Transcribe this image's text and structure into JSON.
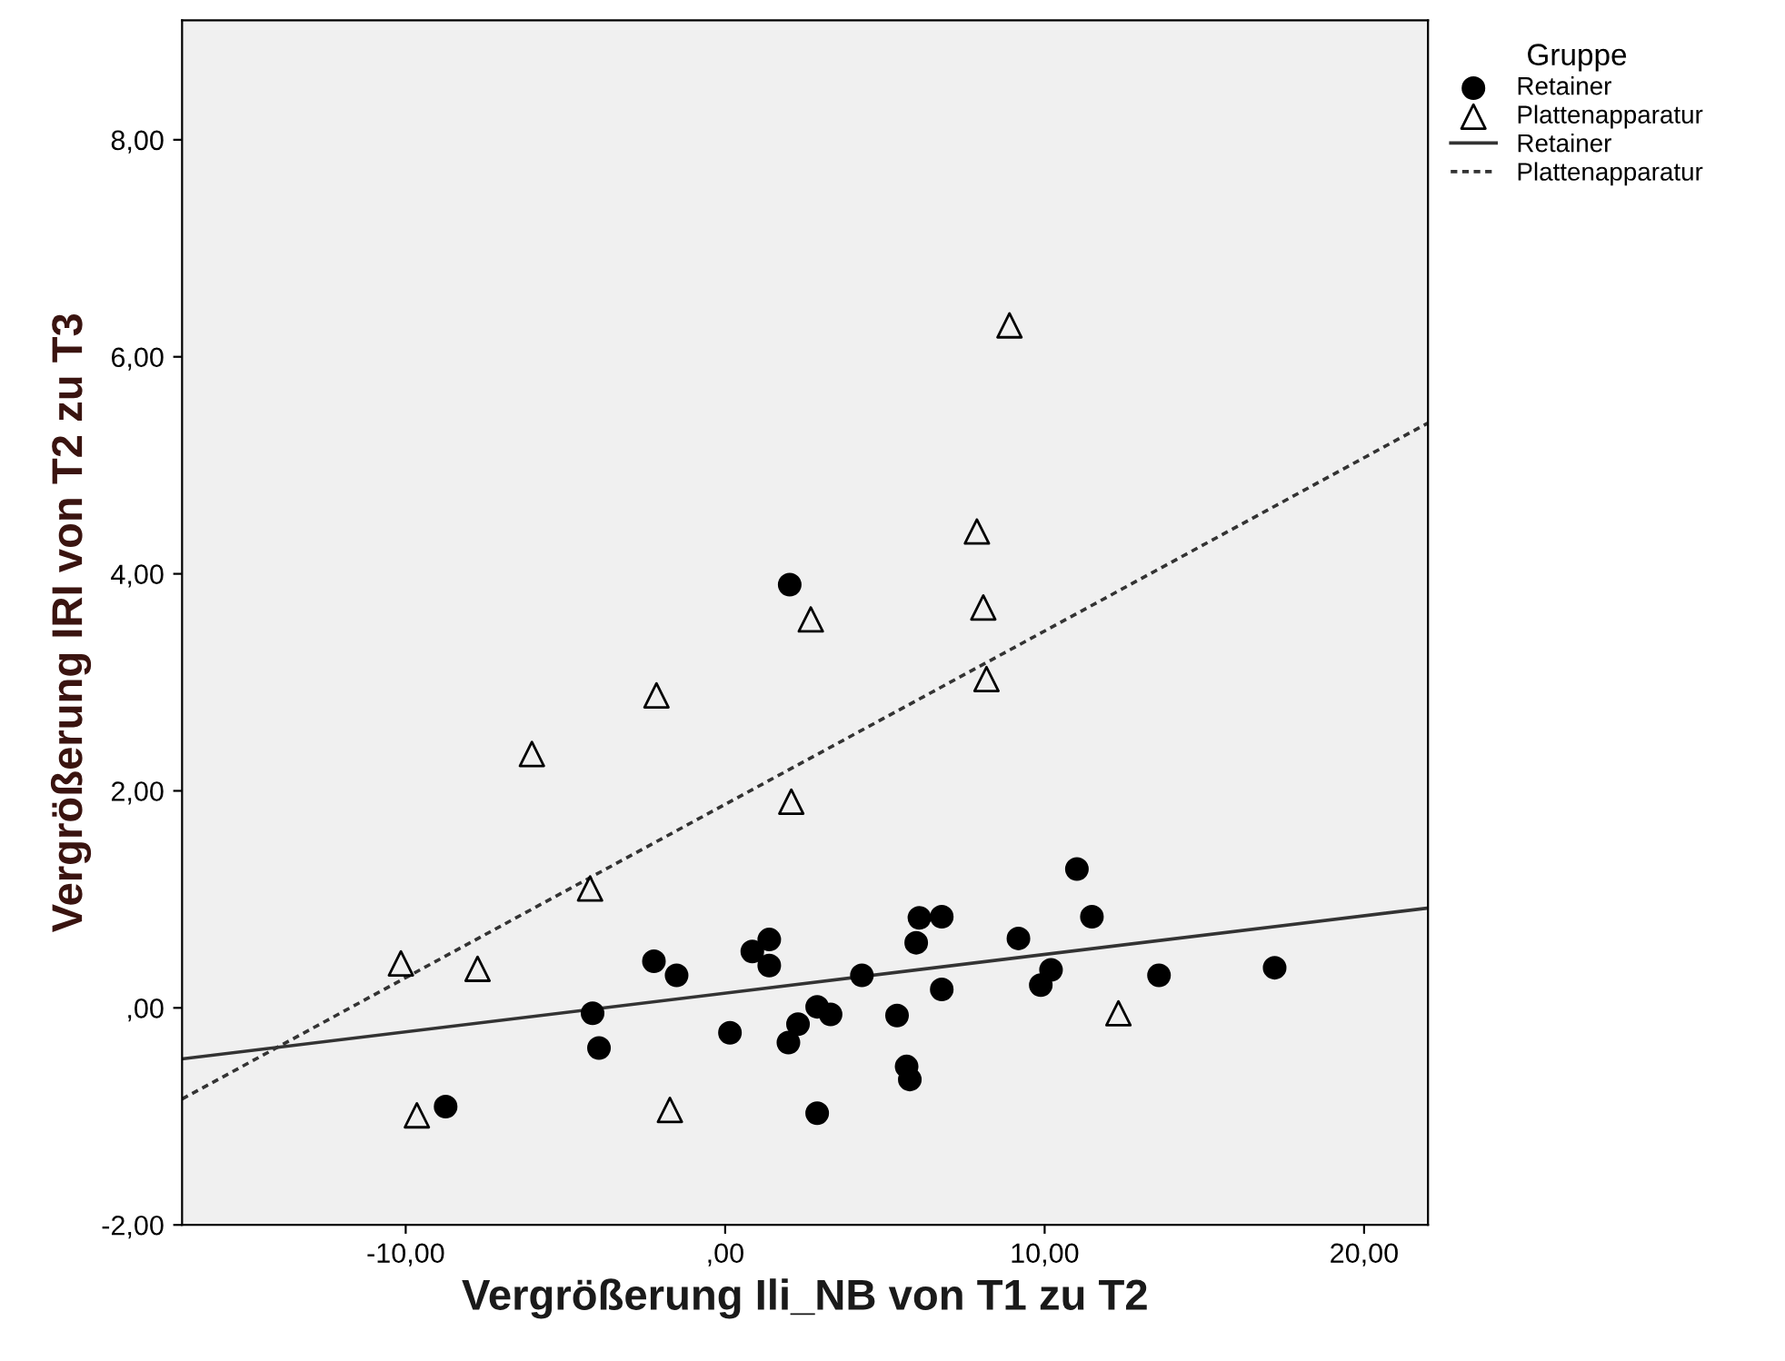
{
  "chart_data": {
    "type": "scatter",
    "xlabel": "Vergrößerung Ili_NB von T1 zu T2",
    "ylabel": "Vergrößerung IRI von T2 zu T3",
    "legend_title": "Gruppe",
    "series": [
      {
        "name": "Retainer",
        "marker": "circle",
        "color": "#000000",
        "x": [
          -8.75,
          -4.15,
          -3.95,
          -2.23,
          -1.52,
          0.15,
          0.85,
          1.38,
          1.38,
          1.98,
          2.28,
          2.88,
          2.88,
          3.3,
          4.28,
          5.38,
          5.68,
          5.78,
          5.98,
          6.08,
          6.78,
          6.78,
          9.18,
          9.88,
          10.2,
          11.01,
          11.48,
          13.58,
          17.2,
          2.02
        ],
        "values": [
          -0.91,
          -0.05,
          -0.37,
          0.43,
          0.3,
          -0.23,
          0.52,
          0.63,
          0.39,
          -0.32,
          -0.15,
          -0.97,
          0.01,
          -0.06,
          0.3,
          -0.07,
          -0.54,
          -0.66,
          0.6,
          0.83,
          0.84,
          0.17,
          0.64,
          0.21,
          0.35,
          1.28,
          0.84,
          0.3,
          0.37,
          3.9
        ]
      },
      {
        "name": "Plattenapparatur",
        "marker": "triangle",
        "color": "#000000",
        "x": [
          -10.15,
          -9.65,
          -7.75,
          -4.23,
          -1.73,
          12.31,
          8.9,
          7.88,
          8.08,
          8.18,
          2.68,
          -2.15,
          -6.05,
          2.07
        ],
        "values": [
          0.41,
          -0.99,
          0.36,
          1.1,
          -0.94,
          -0.05,
          6.29,
          4.39,
          3.69,
          3.03,
          3.58,
          2.88,
          2.34,
          1.9
        ]
      },
      {
        "name": "Retainer",
        "type": "line",
        "line_style": "solid",
        "color": "#333333",
        "x": [
          -17,
          22
        ],
        "values": [
          -0.47,
          0.92
        ]
      },
      {
        "name": "Plattenapparatur",
        "type": "line",
        "line_style": "dotted",
        "color": "#333333",
        "x": [
          -17,
          22
        ],
        "values": [
          -0.84,
          5.39
        ]
      }
    ],
    "xlim": [
      -17,
      22
    ],
    "ylim": [
      -2,
      9.1
    ],
    "xticks": [
      {
        "value": -10,
        "label": "-10,00"
      },
      {
        "value": 0,
        "label": ",00"
      },
      {
        "value": 10,
        "label": "10,00"
      },
      {
        "value": 20,
        "label": "20,00"
      }
    ],
    "yticks": [
      {
        "value": -2,
        "label": "-2,00"
      },
      {
        "value": 0,
        "label": ",00"
      },
      {
        "value": 2,
        "label": "2,00"
      },
      {
        "value": 4,
        "label": "4,00"
      },
      {
        "value": 6,
        "label": "6,00"
      },
      {
        "value": 8,
        "label": "8,00"
      }
    ],
    "grid": false,
    "legend": "top right"
  }
}
